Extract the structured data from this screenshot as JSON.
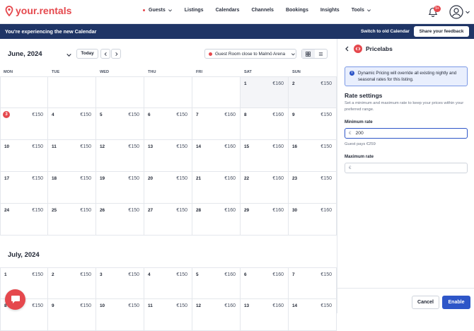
{
  "brand": {
    "name": "your.rentals",
    "color": "#e5484d"
  },
  "nav": {
    "items": [
      {
        "label": "Guests",
        "has_dot": true,
        "has_menu": true
      },
      {
        "label": "Listings"
      },
      {
        "label": "Calendars"
      },
      {
        "label": "Channels"
      },
      {
        "label": "Bookings"
      },
      {
        "label": "Insights"
      },
      {
        "label": "Tools",
        "has_menu": true
      }
    ],
    "notifications_badge": "9+"
  },
  "banner": {
    "message": "You're experiencing the new Calendar",
    "switch_label": "Switch to old Calendar",
    "feedback_label": "Share your feedback",
    "color": "#1f3566"
  },
  "calendar": {
    "month_label": "June, 2024",
    "today_label": "Today",
    "listing_name": "Guest Room close to Malmö Arena",
    "weekdays": [
      "MON",
      "TUE",
      "WED",
      "THU",
      "FRI",
      "SAT",
      "SUN"
    ],
    "june_rows": [
      [
        {
          "day": "",
          "price": ""
        },
        {
          "day": "",
          "price": ""
        },
        {
          "day": "",
          "price": ""
        },
        {
          "day": "",
          "price": ""
        },
        {
          "day": "",
          "price": ""
        },
        {
          "day": "1",
          "price": "€160"
        },
        {
          "day": "2",
          "price": "€150"
        }
      ],
      [
        {
          "day": "3",
          "price": "€150",
          "today": true
        },
        {
          "day": "4",
          "price": "€150"
        },
        {
          "day": "5",
          "price": "€150"
        },
        {
          "day": "6",
          "price": "€150"
        },
        {
          "day": "7",
          "price": "€160"
        },
        {
          "day": "8",
          "price": "€160"
        },
        {
          "day": "9",
          "price": "€150"
        }
      ],
      [
        {
          "day": "10",
          "price": "€150"
        },
        {
          "day": "11",
          "price": "€150"
        },
        {
          "day": "12",
          "price": "€150"
        },
        {
          "day": "13",
          "price": "€150"
        },
        {
          "day": "14",
          "price": "€160"
        },
        {
          "day": "15",
          "price": "€160"
        },
        {
          "day": "16",
          "price": "€150"
        }
      ],
      [
        {
          "day": "17",
          "price": "€150"
        },
        {
          "day": "18",
          "price": "€150"
        },
        {
          "day": "19",
          "price": "€150"
        },
        {
          "day": "20",
          "price": "€150"
        },
        {
          "day": "21",
          "price": "€160"
        },
        {
          "day": "22",
          "price": "€160"
        },
        {
          "day": "23",
          "price": "€150"
        }
      ],
      [
        {
          "day": "24",
          "price": "€150"
        },
        {
          "day": "25",
          "price": "€150"
        },
        {
          "day": "26",
          "price": "€150"
        },
        {
          "day": "27",
          "price": "€150"
        },
        {
          "day": "28",
          "price": "€160"
        },
        {
          "day": "29",
          "price": "€160"
        },
        {
          "day": "30",
          "price": "€160"
        }
      ]
    ],
    "july_label": "July, 2024",
    "july_rows": [
      [
        {
          "day": "1",
          "price": "€150"
        },
        {
          "day": "2",
          "price": "€150"
        },
        {
          "day": "3",
          "price": "€150"
        },
        {
          "day": "4",
          "price": "€150"
        },
        {
          "day": "5",
          "price": "€160"
        },
        {
          "day": "6",
          "price": "€160"
        },
        {
          "day": "7",
          "price": "€150"
        }
      ],
      [
        {
          "day": "8",
          "price": "€150"
        },
        {
          "day": "9",
          "price": "€150"
        },
        {
          "day": "10",
          "price": "€150"
        },
        {
          "day": "11",
          "price": "€150"
        },
        {
          "day": "12",
          "price": "€160"
        },
        {
          "day": "13",
          "price": "€160"
        },
        {
          "day": "14",
          "price": "€150"
        }
      ]
    ]
  },
  "panel": {
    "title": "Pricelabs",
    "info": "Dynamic Pricing will override all existing nightly and seasonal rates for this listing.",
    "rate_title": "Rate settings",
    "rate_subtitle": "Set a minimum and maximum rate to keep your prices within your preferred range.",
    "min_label": "Minimum rate",
    "min_value": "200",
    "currency": "€",
    "guest_pays": "Guest pays €259",
    "max_label": "Maximum rate",
    "max_value": "",
    "cancel_label": "Cancel",
    "enable_label": "Enable",
    "accent_color": "#2e56c8"
  }
}
